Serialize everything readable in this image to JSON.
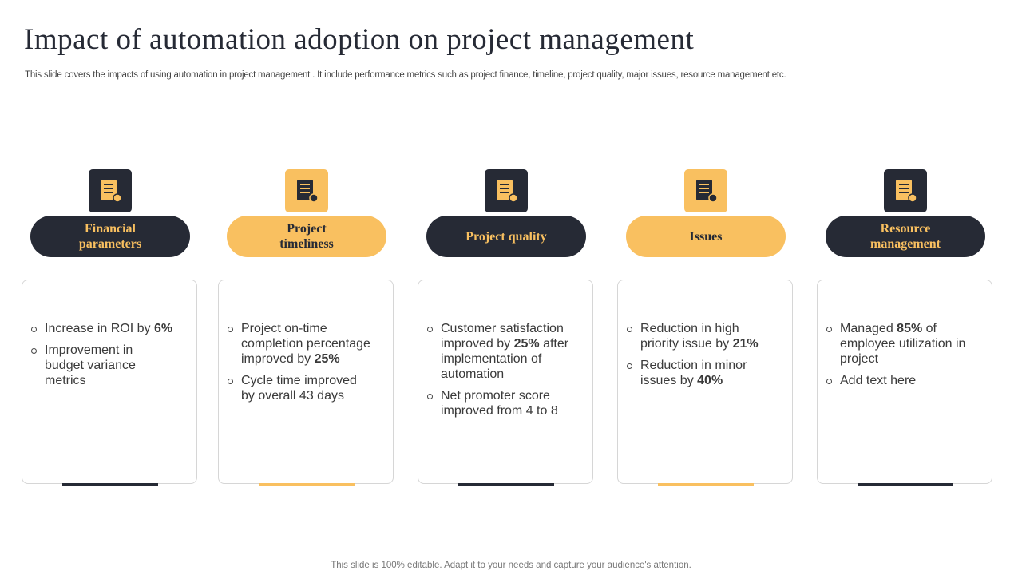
{
  "title": "Impact of automation adoption on project management",
  "subtitle": "This slide covers the impacts of using automation in project management . It include performance metrics such as project finance, timeline, project quality, major issues, resource management etc.",
  "columns": [
    {
      "title": "Financial parameters",
      "color": "#262a35",
      "text_color": "#f9c060",
      "bullets": [
        [
          {
            "text": "Increase in ROI by "
          },
          {
            "text": "6%",
            "bold": true
          }
        ],
        [
          {
            "text": "Improvement  in budget variance metrics"
          }
        ]
      ]
    },
    {
      "title": "Project timeliness",
      "color": "#f9c060",
      "text_color": "#262a35",
      "bullets": [
        [
          {
            "text": "Project on-time completion percentage improved by "
          },
          {
            "text": "25%",
            "bold": true
          }
        ],
        [
          {
            "text": "Cycle time improved by overall 43 days"
          }
        ]
      ]
    },
    {
      "title": "Project quality",
      "color": "#262a35",
      "text_color": "#f9c060",
      "bullets": [
        [
          {
            "text": "Customer satisfaction improved by "
          },
          {
            "text": "25%",
            "bold": true
          },
          {
            "text": " after implementation of automation"
          }
        ],
        [
          {
            "text": "Net promoter score improved from 4 to 8"
          }
        ]
      ]
    },
    {
      "title": "Issues",
      "color": "#f9c060",
      "text_color": "#262a35",
      "bullets": [
        [
          {
            "text": "Reduction in high priority issue by "
          },
          {
            "text": "21%",
            "bold": true
          }
        ],
        [
          {
            "text": "Reduction in minor issues by "
          },
          {
            "text": "40%",
            "bold": true
          }
        ]
      ]
    },
    {
      "title": "Resource management",
      "color": "#262a35",
      "text_color": "#f9c060",
      "bullets": [
        [
          {
            "text": "Managed "
          },
          {
            "text": "85%",
            "bold": true
          },
          {
            "text": " of employee utilization in project"
          }
        ],
        [
          {
            "text": "Add text here"
          }
        ]
      ]
    }
  ],
  "footer": "This slide is 100% editable. Adapt it to your needs and capture your audience's attention."
}
